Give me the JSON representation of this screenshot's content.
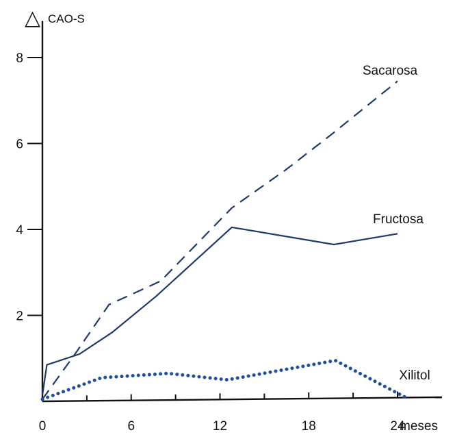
{
  "chart_data": {
    "type": "line",
    "ylabel_symbol": "△",
    "ylabel": "CAO-S",
    "x_unit": "meses",
    "xlim": [
      0,
      27
    ],
    "ylim": [
      0,
      8.5
    ],
    "x_ticks": [
      0,
      6,
      12,
      18,
      24
    ],
    "x_minor_ticks": [
      3,
      9,
      15,
      21
    ],
    "y_ticks": [
      2,
      4,
      6,
      8
    ],
    "series": [
      {
        "name": "Sacarosa",
        "color": "#1f3a66",
        "style": "dashed",
        "points": [
          [
            0,
            0.05
          ],
          [
            2.2,
            1.1
          ],
          [
            4.5,
            2.25
          ],
          [
            8,
            2.8
          ],
          [
            12.8,
            4.5
          ],
          [
            16.5,
            5.4
          ],
          [
            19.5,
            6.2
          ],
          [
            24,
            7.45
          ]
        ]
      },
      {
        "name": "Fructosa",
        "color": "#1f3a66",
        "style": "solid",
        "points": [
          [
            0,
            0.15
          ],
          [
            0.3,
            0.85
          ],
          [
            2.5,
            1.1
          ],
          [
            4.7,
            1.6
          ],
          [
            7.7,
            2.45
          ],
          [
            12.8,
            4.05
          ],
          [
            19.7,
            3.65
          ],
          [
            24,
            3.9
          ]
        ]
      },
      {
        "name": "Xilitol",
        "color": "#1f4f9e",
        "style": "dotted",
        "points": [
          [
            0,
            0.05
          ],
          [
            4,
            0.55
          ],
          [
            8.5,
            0.65
          ],
          [
            12.5,
            0.5
          ],
          [
            19.8,
            0.95
          ],
          [
            24.5,
            0.1
          ]
        ]
      }
    ]
  }
}
